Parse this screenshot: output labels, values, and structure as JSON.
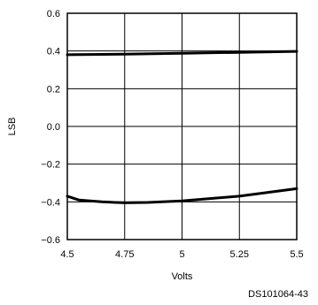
{
  "chart_data": {
    "type": "line",
    "xlabel": "Volts",
    "ylabel": "LSB",
    "xlim": [
      4.5,
      5.5
    ],
    "ylim": [
      -0.6,
      0.6
    ],
    "x_ticks": [
      4.5,
      4.75,
      5,
      5.25,
      5.5
    ],
    "x_tick_labels": [
      "4.5",
      "4.75",
      "5",
      "5.25",
      "5.5"
    ],
    "y_ticks": [
      0.6,
      0.4,
      0.2,
      0.0,
      -0.2,
      -0.4,
      -0.6
    ],
    "y_tick_labels": [
      "0.6",
      "0.4",
      "0.2",
      "0.0",
      "−0.2",
      "−0.4",
      "−0.6"
    ],
    "grid": true,
    "series": [
      {
        "x": [
          4.5,
          4.75,
          5.0,
          5.25,
          5.5
        ],
        "y": [
          0.38,
          0.383,
          0.388,
          0.393,
          0.398
        ]
      },
      {
        "x": [
          4.5,
          4.55,
          4.65,
          4.75,
          4.85,
          5.0,
          5.25,
          5.5
        ],
        "y": [
          -0.37,
          -0.39,
          -0.4,
          -0.405,
          -0.403,
          -0.395,
          -0.37,
          -0.33
        ]
      }
    ],
    "figure_id": "DS101064-43",
    "line_color": "#000000"
  }
}
